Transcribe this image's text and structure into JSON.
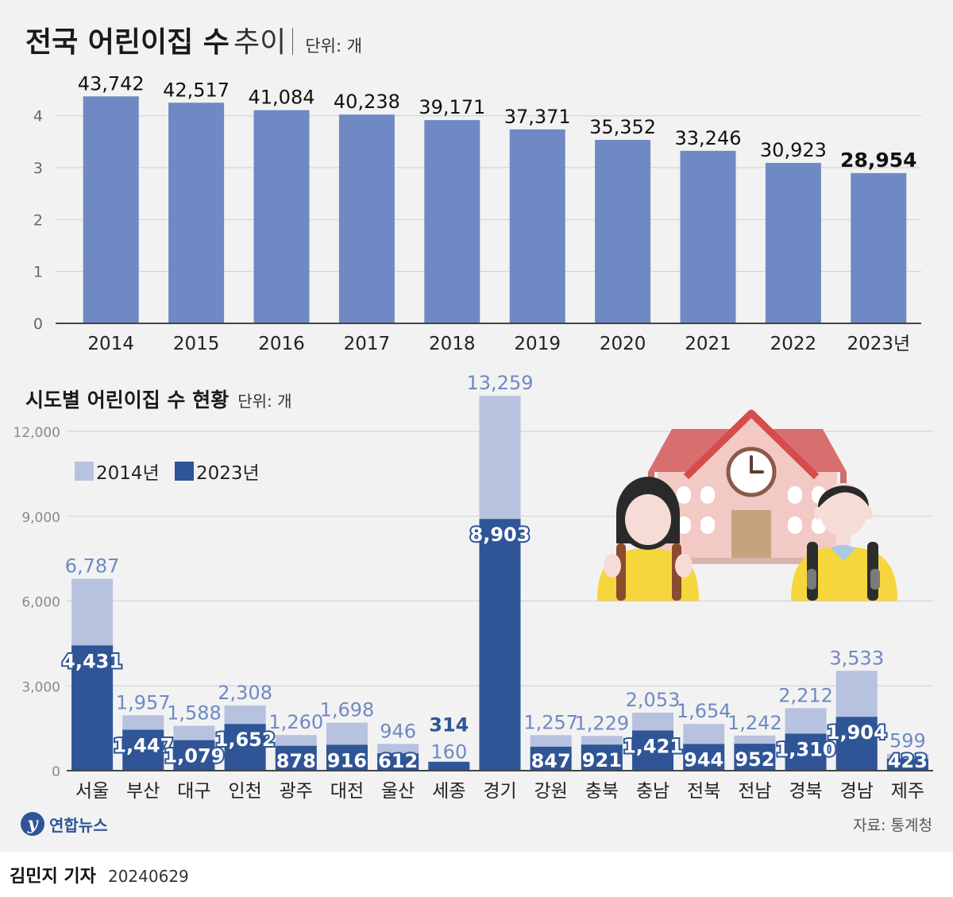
{
  "header": {
    "title_bold": "전국 어린이집 수",
    "title_light": "추이",
    "unit": "단위: 개"
  },
  "subheader": {
    "title": "시도별 어린이집 수 현황",
    "unit": "단위: 개"
  },
  "source": "자료: 통계청",
  "logo_text": "연합뉴스",
  "logo_mark": "y",
  "footer": {
    "reporter": "김민지 기자",
    "date": "20240629"
  },
  "colors": {
    "bar_top": "#6f89c4",
    "bar_2014": "#b7c2df",
    "bar_2023": "#2f5597",
    "label_2014": "#6f89c4",
    "axis": "#444444",
    "grid": "#cfcfcf"
  },
  "chart_data": [
    {
      "type": "bar",
      "title": "전국 어린이집 수 추이",
      "unit": "단위: 개",
      "categories": [
        "2014",
        "2015",
        "2016",
        "2017",
        "2018",
        "2019",
        "2020",
        "2021",
        "2022",
        "2023년"
      ],
      "values": [
        43742,
        42517,
        41084,
        40238,
        39171,
        37371,
        35352,
        33246,
        30923,
        28954
      ],
      "value_labels": [
        "43,742",
        "42,517",
        "41,084",
        "40,238",
        "39,171",
        "37,371",
        "35,352",
        "33,246",
        "30,923",
        "28,954"
      ],
      "ylim": [
        0,
        47000
      ],
      "yticks": [
        0,
        10000,
        20000,
        30000,
        40000
      ],
      "ytick_labels": [
        "0",
        "1",
        "2",
        "3",
        "4"
      ],
      "grid": true
    },
    {
      "type": "bar",
      "title": "시도별 어린이집 수 현황",
      "unit": "단위: 개",
      "categories": [
        "서울",
        "부산",
        "대구",
        "인천",
        "광주",
        "대전",
        "울산",
        "세종",
        "경기",
        "강원",
        "충북",
        "충남",
        "전북",
        "전남",
        "경북",
        "경남",
        "제주"
      ],
      "series": [
        {
          "name": "2014년",
          "values": [
            6787,
            1957,
            1588,
            2308,
            1260,
            1698,
            946,
            160,
            13259,
            1257,
            1229,
            2053,
            1654,
            1242,
            2212,
            3533,
            599
          ],
          "labels": [
            "6,787",
            "1,957",
            "1,588",
            "2,308",
            "1,260",
            "1,698",
            "946",
            "160",
            "13,259",
            "1,257",
            "1,229",
            "2,053",
            "1,654",
            "1,242",
            "2,212",
            "3,533",
            "599"
          ]
        },
        {
          "name": "2023년",
          "values": [
            4431,
            1447,
            1079,
            1652,
            878,
            916,
            612,
            314,
            8903,
            847,
            921,
            1421,
            944,
            952,
            1310,
            1904,
            423
          ],
          "labels": [
            "4,431",
            "1,447",
            "1,079",
            "1,652",
            "878",
            "916",
            "612",
            "314",
            "8,903",
            "847",
            "921",
            "1,421",
            "944",
            "952",
            "1,310",
            "1,904",
            "423"
          ]
        }
      ],
      "ylim": [
        0,
        13500
      ],
      "yticks": [
        0,
        3000,
        6000,
        9000,
        12000
      ],
      "ytick_labels": [
        "0",
        "3,000",
        "6,000",
        "9,000",
        "12,000"
      ],
      "grid": true,
      "legend_position": "top-left"
    }
  ]
}
